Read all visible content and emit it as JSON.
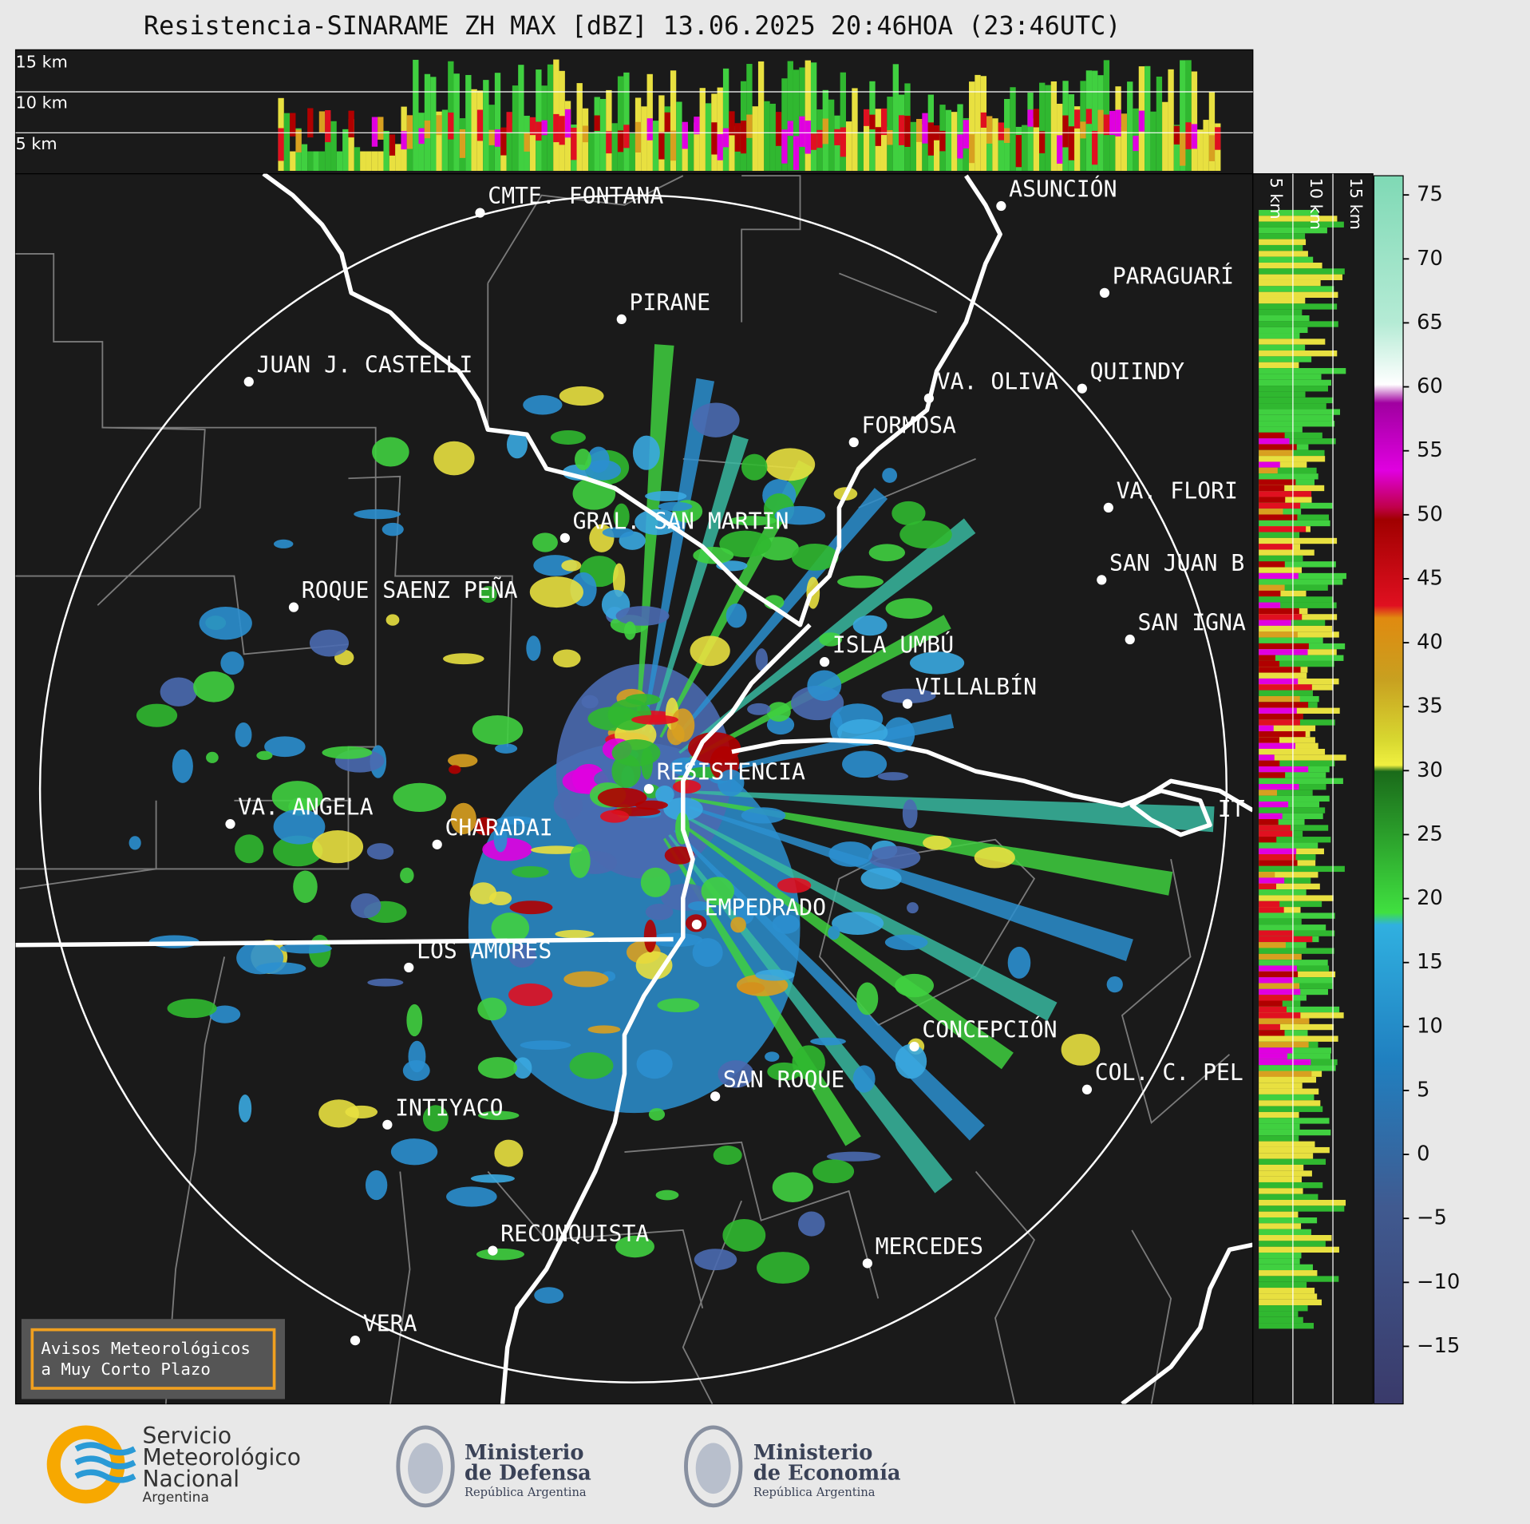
{
  "title": "Resistencia-SINARAME ZH MAX [dBZ] 13.06.2025 20:46HOA (23:46UTC)",
  "top_panel": {
    "height_labels": [
      "15 km",
      "10 km",
      "5 km"
    ]
  },
  "side_panel": {
    "height_labels": [
      "5 km",
      "10 km",
      "15 km"
    ]
  },
  "cities": [
    "CMTE. FONTANA",
    "PIRANE",
    "JUAN J. CASTELLI",
    "VA. OLIVA",
    "QUIINDY",
    "FORMOSA",
    "ASUNCIÓN",
    "PARAGUARÍ",
    "VA. FLORI",
    "GRAL. SAN MARTIN",
    "SAN JUAN B",
    "ROQUE SAENZ PEÑA",
    "SAN IGNA",
    "ISLA UMBÚ",
    "VILLALBÍN",
    "RESISTENCIA",
    "VA. ANGELA",
    "CHARADAI",
    "IT",
    "EMPEDRADO",
    "LOS AMORES",
    "CONCEPCIÓN",
    "SAN ROQUE",
    "COL. C. PEL",
    "INTIYACO",
    "RECONQUISTA",
    "MERCEDES",
    "VERA"
  ],
  "colorbar": {
    "lim": [
      -19.5,
      76.5
    ],
    "ticks": [
      75,
      70,
      65,
      60,
      55,
      50,
      45,
      40,
      35,
      30,
      25,
      20,
      15,
      10,
      5,
      0,
      {
        "value": -5,
        "label": "−5"
      },
      {
        "value": -10,
        "label": "−10"
      },
      {
        "value": -15,
        "label": "−15"
      }
    ]
  },
  "notice": {
    "lines": [
      "Avisos Meteorológicos",
      "a Muy Corto Plazo"
    ]
  },
  "footer": {
    "smn": [
      "Servicio",
      "Meteorológico",
      "Nacional",
      "Argentina"
    ],
    "defensa": [
      "Ministerio",
      "de Defensa",
      "República Argentina"
    ],
    "economia": [
      "Ministerio",
      "de Economía",
      "República Argentina"
    ]
  }
}
